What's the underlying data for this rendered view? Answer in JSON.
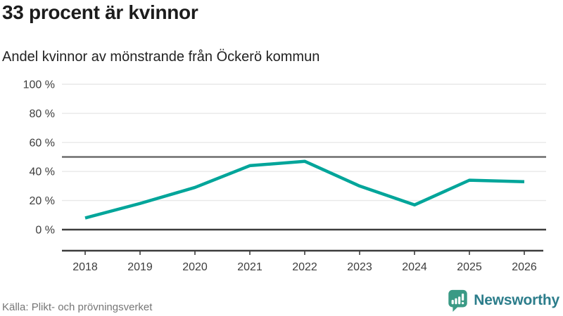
{
  "title": "33 procent är kvinnor",
  "subtitle": "Andel kvinnor av mönstrande från Öckerö kommun",
  "source": "Källa: Plikt- och prövningsverket",
  "brand": {
    "name": "Newsworthy",
    "icon": "newsworthy-speech-bubble-bar-chart-icon",
    "icon_color": "#3a9a85",
    "text_color": "#2c7d8b"
  },
  "colors": {
    "line": "#00a59a",
    "grid": "#e8e8e8",
    "axis": "#3c3c3c",
    "reference": "#6d6d6d",
    "axis_text": "#3d3d3d"
  },
  "chart_data": {
    "type": "line",
    "title": "33 procent är kvinnor",
    "subtitle": "Andel kvinnor av mönstrande från Öckerö kommun",
    "x": [
      "2018",
      "2019",
      "2020",
      "2021",
      "2022",
      "2023",
      "2024",
      "2025",
      "2026"
    ],
    "series": [
      {
        "name": "Andel kvinnor av mönstrande",
        "values": [
          8,
          18,
          29,
          44,
          47,
          30,
          17,
          34,
          33
        ],
        "color": "#00a59a"
      }
    ],
    "unit": "%",
    "xlabel": "",
    "ylabel": "",
    "ylim": [
      0,
      100
    ],
    "yticks": [
      0,
      20,
      40,
      60,
      80,
      100
    ],
    "ytick_format": "{v} %",
    "reference_line": 50,
    "grid": true,
    "legend": "none",
    "source": "Källa: Plikt- och prövningsverket"
  }
}
